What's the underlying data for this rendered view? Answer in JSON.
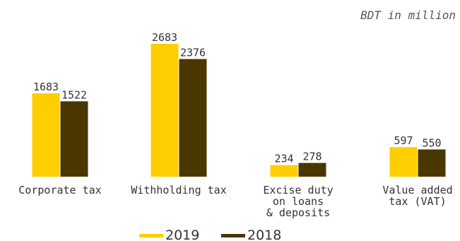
{
  "chart_data": {
    "type": "bar",
    "unit_note": "BDT in million",
    "categories": [
      [
        "Corporate tax"
      ],
      [
        "Withholding tax"
      ],
      [
        "Excise duty",
        "on loans",
        "& deposits"
      ],
      [
        "Value added",
        "tax (VAT)"
      ]
    ],
    "series": [
      {
        "name": "2019",
        "color": "#FFCE00",
        "values": [
          1683,
          2683,
          234,
          597
        ]
      },
      {
        "name": "2018",
        "color": "#4A3700",
        "values": [
          1522,
          2376,
          278,
          550
        ]
      }
    ],
    "ylim": [
      0,
      2683
    ],
    "grid": false,
    "legend_position": "bottom-center"
  }
}
